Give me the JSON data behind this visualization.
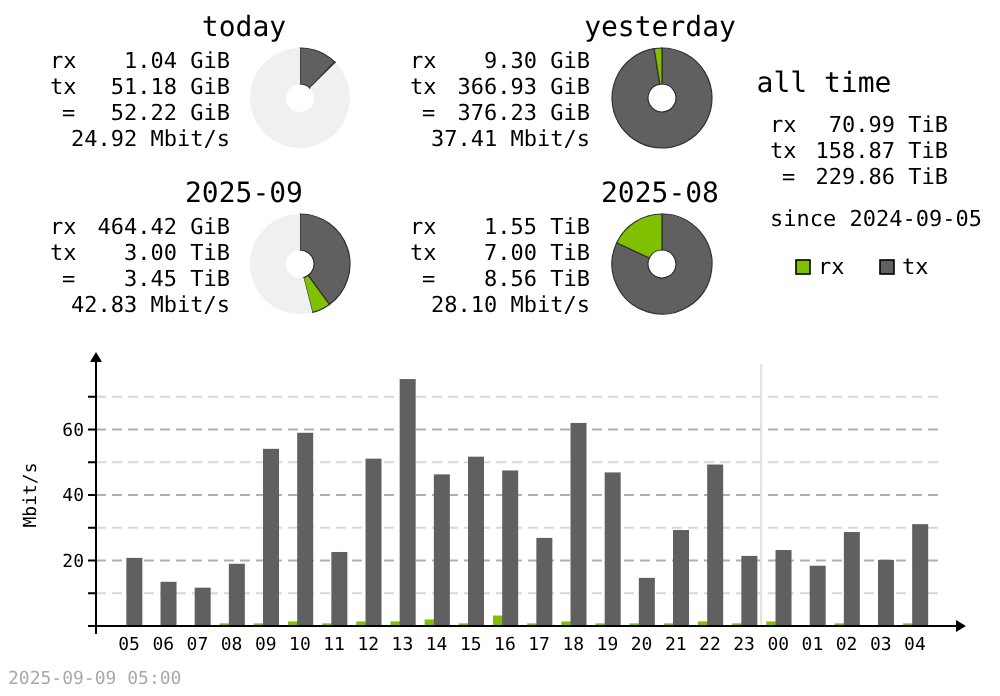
{
  "chart_data": [
    {
      "type": "donut",
      "title": "today",
      "categories": [
        null,
        null,
        null
      ],
      "values": [
        12.2,
        0.3,
        87.5
      ],
      "colors": [
        "#606060",
        "#80c000",
        "#f0f0f0"
      ],
      "annotations": [
        "rx",
        "1.04 GiB",
        "tx",
        "51.18 GiB",
        "=",
        "52.22 GiB",
        "24.92 Mbit/s"
      ]
    },
    {
      "type": "donut",
      "title": "yesterday",
      "categories": [
        null,
        null
      ],
      "values": [
        97.5,
        2.5
      ],
      "colors": [
        "#606060",
        "#80c000"
      ],
      "annotations": [
        "rx",
        "9.30 GiB",
        "tx",
        "366.93 GiB",
        "=",
        "376.23 GiB",
        "37.41 Mbit/s"
      ]
    },
    {
      "type": "other",
      "title": "all time",
      "annotations": [
        "rx",
        "70.99 TiB",
        "tx",
        "158.87 TiB",
        "=",
        "229.86 TiB",
        "since 2024-09-05"
      ]
    },
    {
      "type": "donut",
      "title": "2025-09",
      "categories": [
        null,
        null,
        null
      ],
      "values": [
        40,
        6,
        54
      ],
      "colors": [
        "#606060",
        "#80c000",
        "#f0f0f0"
      ],
      "annotations": [
        "rx",
        "464.42 GiB",
        "tx",
        "3.00 TiB",
        "=",
        "3.45 TiB",
        "42.83 Mbit/s"
      ]
    },
    {
      "type": "donut",
      "title": "2025-08",
      "categories": [
        null,
        null
      ],
      "values": [
        82,
        18
      ],
      "colors": [
        "#606060",
        "#80c000"
      ],
      "annotations": [
        "rx",
        "1.55 TiB",
        "tx",
        "7.00 TiB",
        "=",
        "8.56 TiB",
        "28.10 Mbit/s"
      ]
    },
    {
      "type": "bar",
      "ylabel": "Mbit/s",
      "categories": [
        "05",
        "06",
        "07",
        "08",
        "09",
        "10",
        "11",
        "12",
        "13",
        "14",
        "15",
        "16",
        "17",
        "18",
        "19",
        "20",
        "21",
        "22",
        "23",
        "00",
        "01",
        "02",
        "03",
        "04"
      ],
      "series": [
        {
          "name": "rx",
          "color": "#80c000",
          "values": [
            0,
            0,
            0,
            0.8,
            0.8,
            1.4,
            0.8,
            1.4,
            1.4,
            2.0,
            0.8,
            3.2,
            0.8,
            1.4,
            0.8,
            0.8,
            0.8,
            1.4,
            0.8,
            1.4,
            0,
            0.8,
            0,
            0.8
          ]
        },
        {
          "name": "tx",
          "color": "#606060",
          "values": [
            20.8,
            13.5,
            11.7,
            19.0,
            54.1,
            59.0,
            22.6,
            51.1,
            75.4,
            46.3,
            51.7,
            47.5,
            26.9,
            62.0,
            46.9,
            14.7,
            29.3,
            49.3,
            21.4,
            23.2,
            18.4,
            28.7,
            20.2,
            31.1
          ]
        }
      ],
      "ylim": [
        0,
        80
      ],
      "yticks": [
        {
          "value": 10,
          "label": null
        },
        20,
        {
          "value": 30,
          "label": null
        },
        40,
        {
          "value": 50,
          "label": null
        },
        60,
        {
          "value": 70,
          "label": null
        }
      ],
      "grid": true,
      "legend": "top right",
      "ref_lines": [
        {
          "axis": "x",
          "value": "00",
          "color": "#e0e0e0"
        }
      ],
      "annotations": [
        "2025-09-09 05:00"
      ]
    }
  ]
}
